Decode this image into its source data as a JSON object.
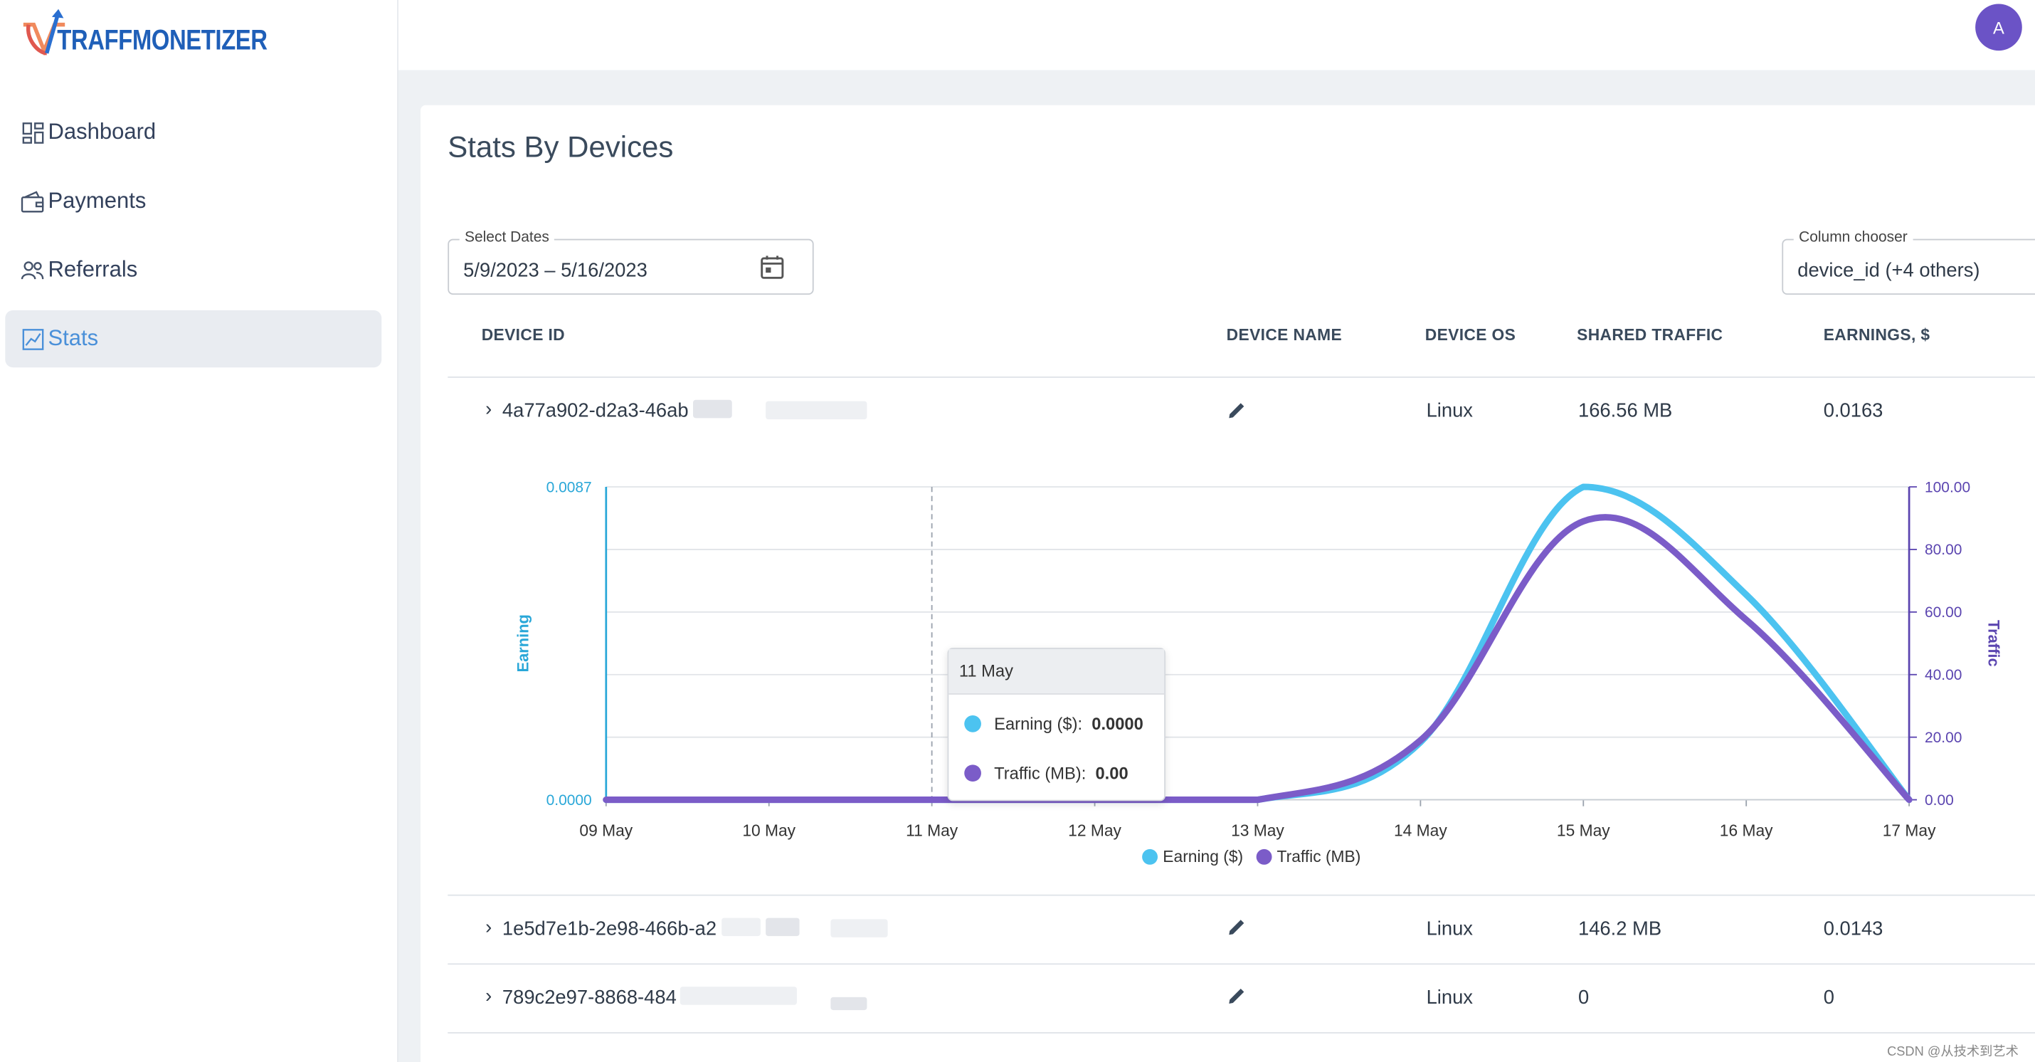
{
  "brand": {
    "name": "TRAFFMONETIZER"
  },
  "user": {
    "avatar_initial": "A"
  },
  "sidebar": {
    "items": [
      {
        "label": "Dashboard",
        "icon": "dashboard-icon",
        "active": false
      },
      {
        "label": "Payments",
        "icon": "wallet-icon",
        "active": false
      },
      {
        "label": "Referrals",
        "icon": "users-icon",
        "active": false
      },
      {
        "label": "Stats",
        "icon": "chart-icon",
        "active": true
      }
    ]
  },
  "page": {
    "title": "Stats By Devices"
  },
  "filters": {
    "dates_label": "Select Dates",
    "dates_value": "5/9/2023 – 5/16/2023",
    "column_chooser_label": "Column chooser",
    "column_chooser_value": "device_id (+4 others)"
  },
  "table": {
    "headers": [
      "DEVICE ID",
      "DEVICE NAME",
      "DEVICE OS",
      "SHARED TRAFFIC",
      "EARNINGS, $"
    ],
    "rows": [
      {
        "device_id": "4a77a902-d2a3-46ab",
        "os": "Linux",
        "traffic": "166.56 MB",
        "earnings": "0.0163",
        "expanded": true
      },
      {
        "device_id": "1e5d7e1b-2e98-466b-a2",
        "os": "Linux",
        "traffic": "146.2 MB",
        "earnings": "0.0143",
        "expanded": false
      },
      {
        "device_id": "789c2e97-8868-484",
        "os": "Linux",
        "traffic": "0",
        "earnings": "0",
        "expanded": false
      }
    ]
  },
  "chart_data": {
    "type": "line",
    "x": [
      "09 May",
      "10 May",
      "11 May",
      "12 May",
      "13 May",
      "14 May",
      "15 May",
      "16 May",
      "17 May"
    ],
    "series": [
      {
        "name": "Earning ($)",
        "color": "#4cc3f0",
        "axis": "left",
        "values": [
          0,
          0,
          0,
          0,
          0,
          0.0016,
          0.0087,
          0.0057,
          0
        ]
      },
      {
        "name": "Traffic (MB)",
        "color": "#7b5cc8",
        "axis": "right",
        "values": [
          0,
          0,
          0,
          0,
          0,
          19.0,
          89.0,
          57.5,
          0
        ]
      }
    ],
    "y_left": {
      "label": "Earning",
      "ticks": [
        "0.0000",
        "0.0087"
      ],
      "range": [
        0,
        0.0087
      ],
      "color": "#29a7d8"
    },
    "y_right": {
      "label": "Traffic",
      "ticks": [
        "0.00",
        "20.00",
        "40.00",
        "60.00",
        "80.00",
        "100.00"
      ],
      "range": [
        0,
        100
      ],
      "color": "#5b45b0"
    },
    "grid": true,
    "legend": "bottom",
    "tooltip": {
      "title": "11 May",
      "rows": [
        {
          "label": "Earning ($):",
          "value": "0.0000"
        },
        {
          "label": "Traffic (MB):",
          "value": "0.00"
        }
      ]
    }
  },
  "watermark": "CSDN @从技术到艺术"
}
